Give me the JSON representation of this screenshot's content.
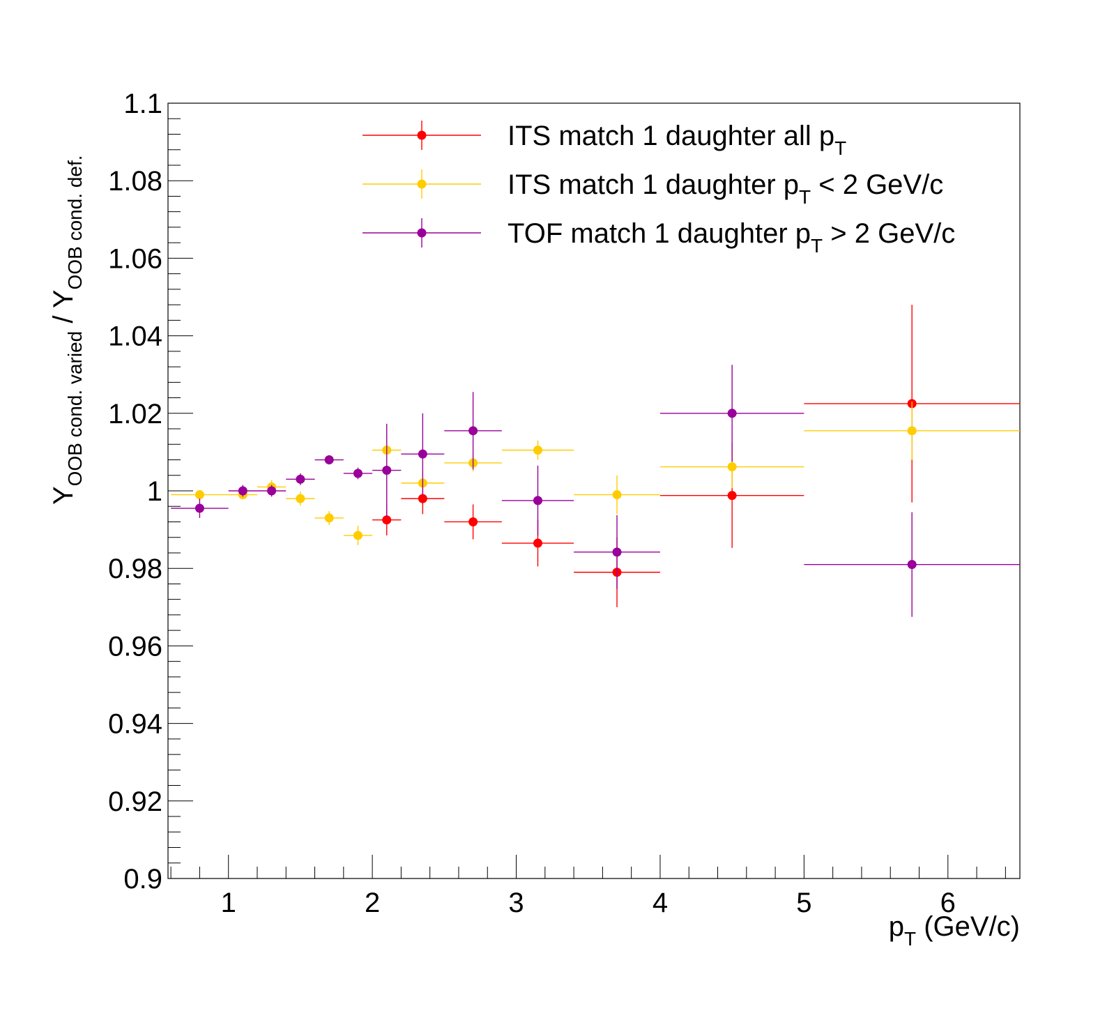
{
  "chart_data": {
    "type": "scatter",
    "title": "",
    "xlabel": {
      "main": "p",
      "sub": "T",
      "rest": " (GeV/c)"
    },
    "ylabel": {
      "y1": "Y",
      "sub1": "OOB cond. varied",
      "slash": " / ",
      "y2": "Y",
      "sub2": "OOB cond. def."
    },
    "xlim": [
      0.58,
      6.5
    ],
    "ylim": [
      0.9,
      1.1
    ],
    "x_ticks": [
      1,
      2,
      3,
      4,
      5,
      6
    ],
    "x_tick_labels": [
      "1",
      "2",
      "3",
      "4",
      "5",
      "6"
    ],
    "y_ticks": [
      0.9,
      0.92,
      0.94,
      0.96,
      0.98,
      1.0,
      1.02,
      1.04,
      1.06,
      1.08,
      1.1
    ],
    "y_tick_labels": [
      "0.9",
      "0.92",
      "0.94",
      "0.96",
      "0.98",
      "1",
      "1.02",
      "1.04",
      "1.06",
      "1.08",
      "1.1"
    ],
    "grid": false,
    "legend_position": "top-right",
    "series": [
      {
        "name": "ITS match 1 daughter all p_T",
        "legend": {
          "main": "ITS match 1 daughter all p",
          "sub": "T",
          "rest": ""
        },
        "color": "#ff0000",
        "points": [
          {
            "x": 2.1,
            "xlo": 2.0,
            "xhi": 2.2,
            "y": 0.9925,
            "err": 0.004
          },
          {
            "x": 2.35,
            "xlo": 2.2,
            "xhi": 2.5,
            "y": 0.998,
            "err": 0.004
          },
          {
            "x": 2.7,
            "xlo": 2.5,
            "xhi": 2.9,
            "y": 0.992,
            "err": 0.0045
          },
          {
            "x": 3.15,
            "xlo": 2.9,
            "xhi": 3.4,
            "y": 0.9865,
            "err": 0.006
          },
          {
            "x": 3.7,
            "xlo": 3.4,
            "xhi": 4.0,
            "y": 0.979,
            "err": 0.009
          },
          {
            "x": 4.5,
            "xlo": 4.0,
            "xhi": 5.0,
            "y": 0.9988,
            "err": 0.0135
          },
          {
            "x": 5.75,
            "xlo": 5.0,
            "xhi": 6.5,
            "y": 1.0225,
            "err": 0.0255
          }
        ]
      },
      {
        "name": "ITS match 1 daughter p_T < 2 GeV/c",
        "legend": {
          "main": "ITS match 1 daughter p",
          "sub": "T",
          "rest": " < 2 GeV/c"
        },
        "color": "#ffcc00",
        "points": [
          {
            "x": 0.8,
            "xlo": 0.6,
            "xhi": 1.0,
            "y": 0.999,
            "err": 0.0
          },
          {
            "x": 1.1,
            "xlo": 1.0,
            "xhi": 1.2,
            "y": 0.999,
            "err": 0.0012
          },
          {
            "x": 1.3,
            "xlo": 1.2,
            "xhi": 1.4,
            "y": 1.001,
            "err": 0.0018
          },
          {
            "x": 1.5,
            "xlo": 1.4,
            "xhi": 1.6,
            "y": 0.998,
            "err": 0.0018
          },
          {
            "x": 1.7,
            "xlo": 1.6,
            "xhi": 1.8,
            "y": 0.993,
            "err": 0.0018
          },
          {
            "x": 1.9,
            "xlo": 1.8,
            "xhi": 2.0,
            "y": 0.9885,
            "err": 0.0025
          },
          {
            "x": 2.1,
            "xlo": 2.0,
            "xhi": 2.2,
            "y": 1.0105,
            "err": 0.0
          },
          {
            "x": 2.35,
            "xlo": 2.2,
            "xhi": 2.5,
            "y": 1.002,
            "err": 0.0025
          },
          {
            "x": 2.7,
            "xlo": 2.5,
            "xhi": 2.9,
            "y": 1.0072,
            "err": 0.0022
          },
          {
            "x": 3.15,
            "xlo": 2.9,
            "xhi": 3.4,
            "y": 1.0105,
            "err": 0.0025
          },
          {
            "x": 3.7,
            "xlo": 3.4,
            "xhi": 4.0,
            "y": 0.999,
            "err": 0.005
          },
          {
            "x": 4.5,
            "xlo": 4.0,
            "xhi": 5.0,
            "y": 1.0062,
            "err": 0.0055
          },
          {
            "x": 5.75,
            "xlo": 5.0,
            "xhi": 6.5,
            "y": 1.0155,
            "err": 0.0075
          }
        ]
      },
      {
        "name": "TOF match 1 daughter p_T > 2 GeV/c",
        "legend": {
          "main": "TOF match 1 daughter p",
          "sub": "T",
          "rest": " > 2 GeV/c"
        },
        "color": "#990099",
        "points": [
          {
            "x": 0.8,
            "xlo": 0.6,
            "xhi": 1.0,
            "y": 0.9955,
            "err": 0.0025
          },
          {
            "x": 1.1,
            "xlo": 1.0,
            "xhi": 1.2,
            "y": 1.0,
            "err": 0.0015
          },
          {
            "x": 1.3,
            "xlo": 1.2,
            "xhi": 1.4,
            "y": 1.0,
            "err": 0.0015
          },
          {
            "x": 1.5,
            "xlo": 1.4,
            "xhi": 1.6,
            "y": 1.003,
            "err": 0.0015
          },
          {
            "x": 1.7,
            "xlo": 1.6,
            "xhi": 1.8,
            "y": 1.008,
            "err": 0.0012
          },
          {
            "x": 1.9,
            "xlo": 1.8,
            "xhi": 2.0,
            "y": 1.0045,
            "err": 0.0015
          },
          {
            "x": 2.1,
            "xlo": 2.0,
            "xhi": 2.2,
            "y": 1.0053,
            "err": 0.012
          },
          {
            "x": 2.35,
            "xlo": 2.2,
            "xhi": 2.5,
            "y": 1.0095,
            "err": 0.0105
          },
          {
            "x": 2.7,
            "xlo": 2.5,
            "xhi": 2.9,
            "y": 1.0155,
            "err": 0.01
          },
          {
            "x": 3.15,
            "xlo": 2.9,
            "xhi": 3.4,
            "y": 0.9975,
            "err": 0.009
          },
          {
            "x": 3.7,
            "xlo": 3.4,
            "xhi": 4.0,
            "y": 0.9842,
            "err": 0.0095
          },
          {
            "x": 4.5,
            "xlo": 4.0,
            "xhi": 5.0,
            "y": 1.02,
            "err": 0.0125
          },
          {
            "x": 5.75,
            "xlo": 5.0,
            "xhi": 6.5,
            "y": 0.981,
            "err": 0.0135
          }
        ]
      }
    ]
  }
}
